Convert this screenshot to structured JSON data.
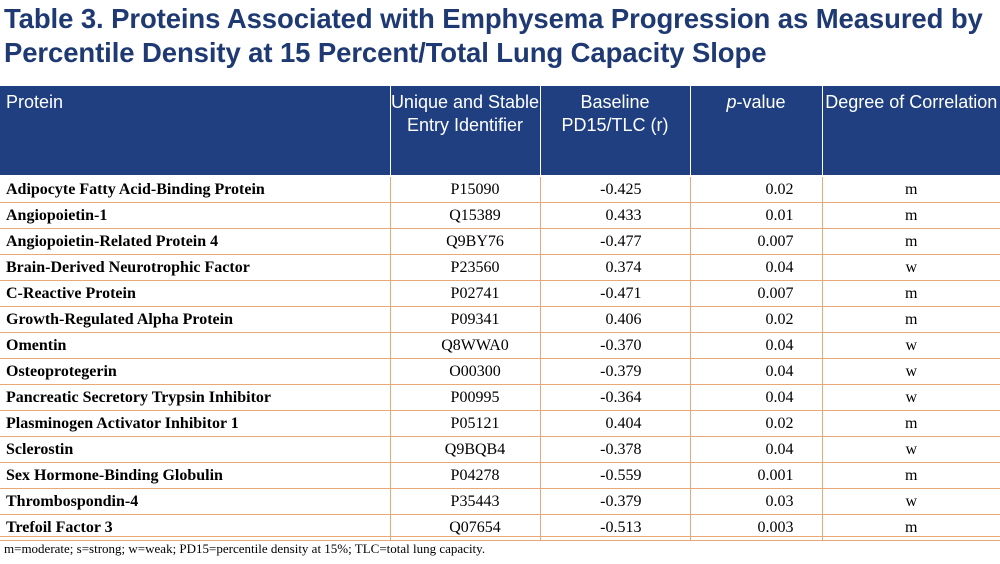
{
  "title": "Table 3. Proteins Associated with Emphysema Progression as Measured by Percentile Density at 15 Percent/Total Lung Capacity Slope",
  "headers": {
    "protein": "Protein",
    "identifier": "Unique and Stable Entry Identifier",
    "baseline": "Baseline PD15/TLC (r)",
    "pvalue_italic": "p",
    "pvalue_rest": "-value",
    "degree": "Degree of Correlation"
  },
  "rows": [
    {
      "protein": "Adipocyte Fatty Acid-Binding Protein",
      "id": "P15090",
      "r": "-0.425",
      "p": "0.02",
      "degree": "m"
    },
    {
      "protein": "Angiopoietin-1",
      "id": "Q15389",
      "r": "0.433",
      "p": "0.01",
      "degree": "m"
    },
    {
      "protein": "Angiopoietin-Related Protein 4",
      "id": "Q9BY76",
      "r": "-0.477",
      "p": "0.007",
      "degree": "m"
    },
    {
      "protein": "Brain-Derived Neurotrophic Factor",
      "id": "P23560",
      "r": "0.374",
      "p": "0.04",
      "degree": "w"
    },
    {
      "protein": "C-Reactive Protein",
      "id": "P02741",
      "r": "-0.471",
      "p": "0.007",
      "degree": "m"
    },
    {
      "protein": "Growth-Regulated Alpha Protein",
      "id": "P09341",
      "r": "0.406",
      "p": "0.02",
      "degree": "m"
    },
    {
      "protein": "Omentin",
      "id": "Q8WWA0",
      "r": "-0.370",
      "p": "0.04",
      "degree": "w"
    },
    {
      "protein": "Osteoprotegerin",
      "id": "O00300",
      "r": "-0.379",
      "p": "0.04",
      "degree": "w"
    },
    {
      "protein": "Pancreatic Secretory Trypsin Inhibitor",
      "id": "P00995",
      "r": "-0.364",
      "p": "0.04",
      "degree": "w"
    },
    {
      "protein": "Plasminogen Activator Inhibitor 1",
      "id": "P05121",
      "r": "0.404",
      "p": "0.02",
      "degree": "m"
    },
    {
      "protein": "Sclerostin",
      "id": "Q9BQB4",
      "r": "-0.378",
      "p": "0.04",
      "degree": "w"
    },
    {
      "protein": "Sex Hormone-Binding Globulin",
      "id": "P04278",
      "r": "-0.559",
      "p": "0.001",
      "degree": "m"
    },
    {
      "protein": "Thrombospondin-4",
      "id": "P35443",
      "r": "-0.379",
      "p": "0.03",
      "degree": "w"
    },
    {
      "protein": "Trefoil Factor 3",
      "id": "Q07654",
      "r": "-0.513",
      "p": "0.003",
      "degree": "m"
    }
  ],
  "footnote": "m=moderate; s=strong; w=weak; PD15=percentile density at 15%; TLC=total lung capacity.",
  "colors": {
    "title": "#1f3a73",
    "header_bg": "#1f3f80",
    "row_border": "#e8a878"
  }
}
